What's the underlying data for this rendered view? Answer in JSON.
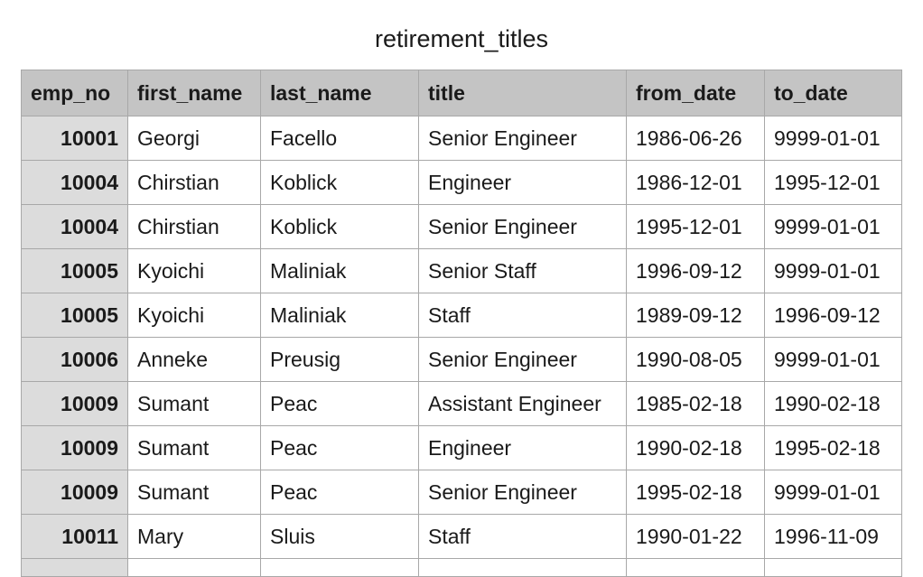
{
  "sheet": {
    "title": "retirement_titles"
  },
  "table": {
    "columns": [
      "emp_no",
      "first_name",
      "last_name",
      "title",
      "from_date",
      "to_date"
    ],
    "rows": [
      [
        "10001",
        "Georgi",
        "Facello",
        "Senior Engineer",
        "1986-06-26",
        "9999-01-01"
      ],
      [
        "10004",
        "Chirstian",
        "Koblick",
        "Engineer",
        "1986-12-01",
        "1995-12-01"
      ],
      [
        "10004",
        "Chirstian",
        "Koblick",
        "Senior Engineer",
        "1995-12-01",
        "9999-01-01"
      ],
      [
        "10005",
        "Kyoichi",
        "Maliniak",
        "Senior Staff",
        "1996-09-12",
        "9999-01-01"
      ],
      [
        "10005",
        "Kyoichi",
        "Maliniak",
        "Staff",
        "1989-09-12",
        "1996-09-12"
      ],
      [
        "10006",
        "Anneke",
        "Preusig",
        "Senior Engineer",
        "1990-08-05",
        "9999-01-01"
      ],
      [
        "10009",
        "Sumant",
        "Peac",
        "Assistant Engineer",
        "1985-02-18",
        "1990-02-18"
      ],
      [
        "10009",
        "Sumant",
        "Peac",
        "Engineer",
        "1990-02-18",
        "1995-02-18"
      ],
      [
        "10009",
        "Sumant",
        "Peac",
        "Senior Engineer",
        "1995-02-18",
        "9999-01-01"
      ],
      [
        "10011",
        "Mary",
        "Sluis",
        "Staff",
        "1990-01-22",
        "1996-11-09"
      ]
    ]
  }
}
